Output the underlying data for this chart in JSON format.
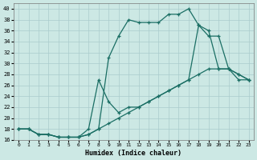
{
  "title": "",
  "xlabel": "Humidex (Indice chaleur)",
  "bg_color": "#cce8e4",
  "grid_color": "#aacccc",
  "line_color": "#1a6e64",
  "xlim": [
    -0.5,
    23.5
  ],
  "ylim": [
    16,
    41
  ],
  "xticks": [
    0,
    1,
    2,
    3,
    4,
    5,
    6,
    7,
    8,
    9,
    10,
    11,
    12,
    13,
    14,
    15,
    16,
    17,
    18,
    19,
    20,
    21,
    22,
    23
  ],
  "yticks": [
    16,
    18,
    20,
    22,
    24,
    26,
    28,
    30,
    32,
    34,
    36,
    38,
    40
  ],
  "line1_x": [
    0,
    1,
    2,
    3,
    4,
    5,
    6,
    7,
    8,
    9,
    10,
    11,
    12,
    13,
    14,
    15,
    16,
    17,
    18,
    19,
    20,
    21,
    22,
    23
  ],
  "line1_y": [
    18,
    18,
    17,
    17,
    16.5,
    16.5,
    16.5,
    17,
    18,
    31,
    35,
    38,
    37.5,
    37.5,
    37.5,
    39,
    39,
    40,
    37,
    35,
    35,
    29,
    27,
    27
  ],
  "line2_x": [
    0,
    1,
    2,
    3,
    4,
    5,
    6,
    7,
    8,
    9,
    10,
    11,
    12,
    13,
    14,
    15,
    16,
    17,
    18,
    19,
    20,
    21,
    22,
    23
  ],
  "line2_y": [
    18,
    18,
    17,
    17,
    16.5,
    16.5,
    16.5,
    17,
    18,
    19,
    20,
    21,
    22,
    23,
    24,
    25,
    26,
    27,
    28,
    29,
    29,
    29,
    28,
    27
  ],
  "line3_x": [
    0,
    1,
    2,
    3,
    4,
    5,
    6,
    7,
    8,
    9,
    10,
    11,
    12,
    13,
    14,
    15,
    16,
    17,
    18,
    19,
    20,
    21,
    22,
    23
  ],
  "line3_y": [
    18,
    18,
    17,
    17,
    16.5,
    16.5,
    16.5,
    18,
    27,
    23,
    21,
    22,
    22,
    23,
    24,
    25,
    26,
    27,
    37,
    36,
    29,
    29,
    28,
    27
  ]
}
